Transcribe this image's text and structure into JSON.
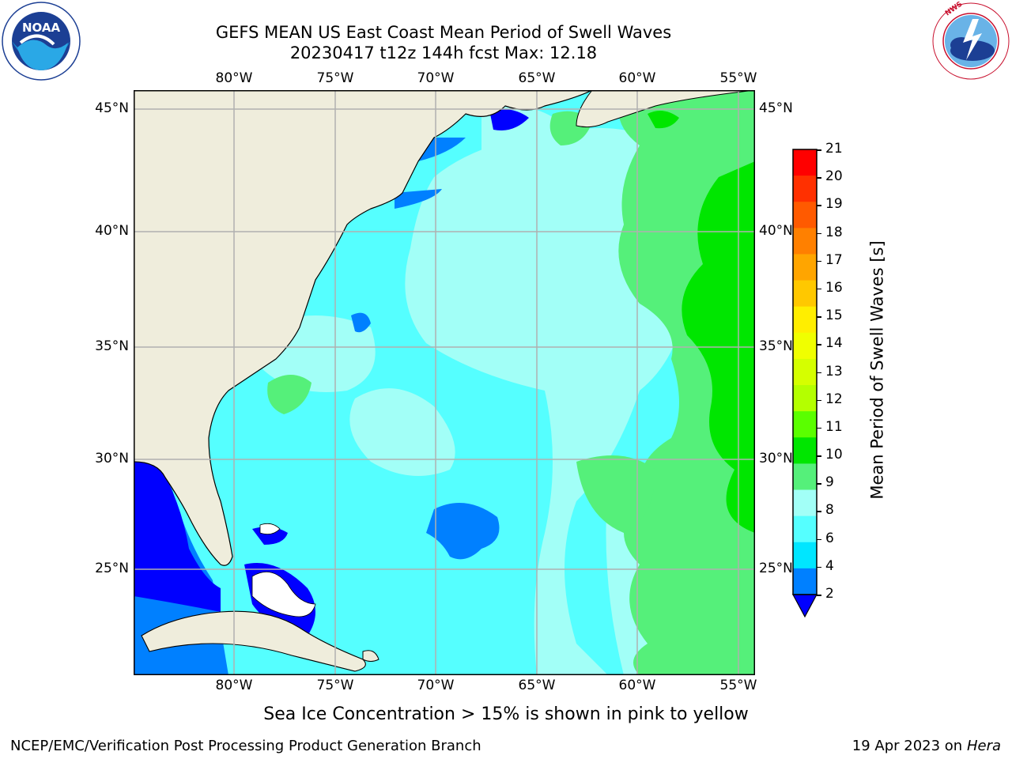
{
  "title": {
    "line1": "GEFS MEAN US East Coast Mean Period of Swell Waves",
    "line2": "20230417 t12z 144h fcst   Max: 12.18"
  },
  "logos": {
    "left": {
      "text": "NOAA",
      "ring_text": "NATIONAL OCEANIC AND ATMOSPHERIC ADMINISTRATION · U.S. DEPARTMENT OF COMMERCE",
      "icon": "noaa-logo"
    },
    "right": {
      "ring_text": "NATIONAL WEATHER SERVICE",
      "icon": "nws-logo"
    }
  },
  "map": {
    "lon_ticks": [
      "80°W",
      "75°W",
      "70°W",
      "65°W",
      "60°W",
      "55°W"
    ],
    "lat_ticks": [
      "45°N",
      "40°N",
      "35°N",
      "30°N",
      "25°N"
    ],
    "lon_range": [
      -85,
      -54.5
    ],
    "lat_range": [
      20.5,
      46
    ],
    "colors": {
      "land": "#efeddc",
      "coast": "#000000",
      "grid": "#b0b0b0"
    }
  },
  "colorbar": {
    "title": "Mean Period of Swell Waves [s]",
    "levels": [
      "21",
      "20",
      "19",
      "18",
      "17",
      "16",
      "15",
      "14",
      "13",
      "12",
      "11",
      "10",
      "9",
      "8",
      "6",
      "4",
      "2"
    ],
    "colors_top_to_bottom": [
      "#ff0000",
      "#ff3000",
      "#ff5a00",
      "#ff8000",
      "#ffa500",
      "#ffc800",
      "#ffee00",
      "#f0ff00",
      "#d5ff00",
      "#b4ff00",
      "#5aff00",
      "#00e600",
      "#55f07a",
      "#a2fff7",
      "#55ffff",
      "#00e6ff",
      "#0080ff"
    ],
    "extend_color": "#0000ff"
  },
  "caption": "Sea Ice Concentration > 15% is shown in pink to yellow",
  "footer": {
    "left": "NCEP/EMC/Verification Post Processing Product Generation Branch",
    "right_date": "19 Apr 2023 on",
    "right_machine": "Hera"
  }
}
